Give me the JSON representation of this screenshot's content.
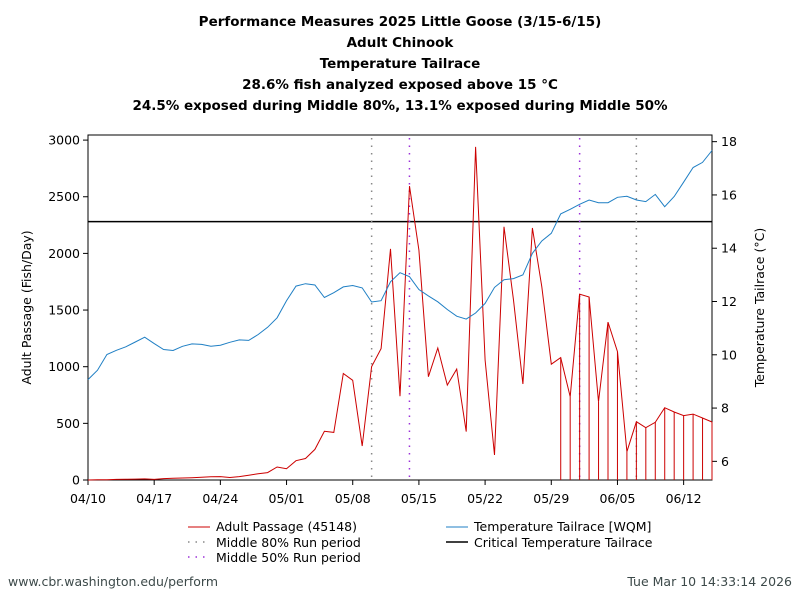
{
  "chart_data": {
    "type": "line",
    "title_lines": [
      "Performance Measures 2025 Little Goose (3/15-6/15)",
      "Adult Chinook",
      "Temperature Tailrace",
      "28.6% fish analyzed exposed above 15 °C",
      "24.5% exposed during Middle 80%, 13.1% exposed during Middle 50%"
    ],
    "ylabel_left": "Adult Passage (Fish/Day)",
    "ylabel_right": "Temperature Tailrace (°C)",
    "x_start": "04/10",
    "x_end": "06/15",
    "x_tick_labels": [
      "04/10",
      "04/17",
      "04/24",
      "05/01",
      "05/08",
      "05/15",
      "05/22",
      "05/29",
      "06/05",
      "06/12"
    ],
    "ylim_left": [
      0,
      3045
    ],
    "yticks_left": [
      0,
      500,
      1000,
      1500,
      2000,
      2500,
      3000
    ],
    "ylim_right": [
      5.3,
      18.25
    ],
    "yticks_right": [
      6,
      8,
      10,
      12,
      14,
      16,
      18
    ],
    "series": [
      {
        "name": "Adult Passage (45148)",
        "axis": "left",
        "color": "#cc0000",
        "values": [
          0,
          2,
          3,
          5,
          6,
          8,
          10,
          5,
          12,
          15,
          18,
          20,
          25,
          28,
          30,
          22,
          30,
          42,
          55,
          65,
          115,
          100,
          170,
          190,
          270,
          430,
          420,
          940,
          880,
          300,
          1000,
          1160,
          2040,
          740,
          2594,
          2030,
          912,
          1165,
          838,
          979,
          427,
          2940,
          1059,
          221,
          2235,
          1588,
          847,
          2224,
          1706,
          1022,
          1080,
          735,
          1641,
          1615,
          691,
          1394,
          1132,
          250,
          515,
          462,
          509,
          638,
          600,
          568,
          582,
          547,
          512
        ]
      },
      {
        "name": "Temperature Tailrace [WQM]",
        "axis": "right",
        "color": "#1f7fc4",
        "values": [
          9.07,
          9.42,
          10.01,
          10.17,
          10.3,
          10.48,
          10.66,
          10.42,
          10.2,
          10.16,
          10.32,
          10.41,
          10.39,
          10.32,
          10.36,
          10.47,
          10.56,
          10.54,
          10.76,
          11.03,
          11.39,
          12.03,
          12.58,
          12.67,
          12.62,
          12.15,
          12.33,
          12.55,
          12.6,
          12.51,
          11.98,
          12.03,
          12.74,
          13.08,
          12.93,
          12.45,
          12.21,
          11.99,
          11.7,
          11.45,
          11.34,
          11.57,
          11.93,
          12.53,
          12.82,
          12.86,
          13.0,
          13.81,
          14.27,
          14.56,
          15.29,
          15.46,
          15.65,
          15.81,
          15.71,
          15.71,
          15.91,
          15.95,
          15.81,
          15.75,
          16.02,
          15.56,
          15.94,
          16.48,
          17.03,
          17.22,
          17.67
        ]
      }
    ],
    "critical_temperature": {
      "name": "Critical Temperature Tailrace",
      "value": 15,
      "color": "#000000"
    },
    "middle_80": {
      "name": "Middle 80% Run period",
      "dates": [
        "05/10",
        "06/07"
      ],
      "color": "#888888"
    },
    "middle_50": {
      "name": "Middle 50% Run period",
      "dates": [
        "05/14",
        "06/01"
      ],
      "color": "#9b30d9"
    },
    "grid": false,
    "legend_position": "bottom"
  },
  "footer": {
    "url": "www.cbr.washington.edu/perform",
    "timestamp": "Tue Mar 10 14:33:14 2026"
  }
}
